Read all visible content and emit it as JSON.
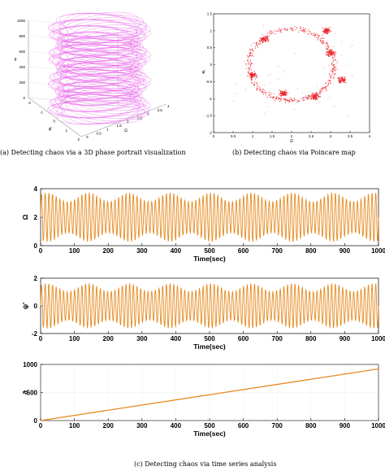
{
  "captions": {
    "a": "(a) Detecting chaos via a 3D phase portrait visualization",
    "b": "(b) Detecting chaos via Poincare map",
    "c": "(c) Detecting chaos via time series analysis"
  },
  "chart_data": [
    {
      "id": "a",
      "type": "scatter",
      "subtype": "3d-line",
      "title": "",
      "xlabel": "Ω",
      "ylabel": "ψ'",
      "zlabel": "ϑ",
      "x_ticks": [
        "0",
        "0.5",
        "1",
        "1.5",
        "2",
        "2.5",
        "3",
        "3.5",
        "4"
      ],
      "y_ticks": [
        "-2",
        "-1",
        "0",
        "1",
        "2"
      ],
      "z_ticks": [
        "0",
        "200",
        "400",
        "600",
        "800",
        "1000"
      ],
      "xlim": [
        0,
        4
      ],
      "ylim": [
        -2,
        2
      ],
      "zlim": [
        0,
        1000
      ],
      "grid": true,
      "color": "#e64fe6",
      "series": [
        {
          "values": "phase trajectory: Ω in [0.5, 3.5], ψ' in [-2, 2], ϑ increasing 0 to 1000"
        }
      ]
    },
    {
      "id": "b",
      "type": "scatter",
      "title": "",
      "xlabel": "Ω",
      "ylabel": "ψ'",
      "x_ticks": [
        "0",
        "0.5",
        "1",
        "1.5",
        "2",
        "2.5",
        "3",
        "3.5",
        "4"
      ],
      "y_ticks": [
        "-2",
        "-1.5",
        "-1",
        "-0.5",
        "0",
        "0.5",
        "1",
        "1.5"
      ],
      "xlim": [
        0,
        4
      ],
      "ylim": [
        -2,
        1.5
      ],
      "color": "#e8222a",
      "ring": {
        "center": [
          2.0,
          0.0
        ],
        "radius_x": 1.1,
        "radius_y": 1.05
      },
      "clusters": [
        {
          "x": 1.3,
          "y": 0.75
        },
        {
          "x": 2.9,
          "y": 1.0
        },
        {
          "x": 3.0,
          "y": 0.35
        },
        {
          "x": 1.0,
          "y": -0.3
        },
        {
          "x": 1.8,
          "y": -0.85
        },
        {
          "x": 2.6,
          "y": -0.95
        },
        {
          "x": 3.3,
          "y": -0.45
        }
      ]
    },
    {
      "id": "c1",
      "type": "line",
      "title": "",
      "xlabel": "Time(sec)",
      "ylabel": "Ω",
      "x_ticks": [
        "0",
        "100",
        "200",
        "300",
        "400",
        "500",
        "600",
        "700",
        "800",
        "900",
        "1000"
      ],
      "y_ticks": [
        "0",
        "2",
        "4"
      ],
      "xlim": [
        0,
        1000
      ],
      "ylim": [
        0,
        4
      ],
      "color": "#e58a1f",
      "series": [
        {
          "mean": 2.0,
          "amplitude": 1.7,
          "cycles": 92
        }
      ]
    },
    {
      "id": "c2",
      "type": "line",
      "title": "",
      "xlabel": "Time(sec)",
      "ylabel": "ψ'",
      "x_ticks": [
        "0",
        "100",
        "200",
        "300",
        "400",
        "500",
        "600",
        "700",
        "800",
        "900",
        "1000"
      ],
      "y_ticks": [
        "-2",
        "0",
        "2"
      ],
      "xlim": [
        0,
        1000
      ],
      "ylim": [
        -2,
        2
      ],
      "color": "#e58a1f",
      "series": [
        {
          "mean": 0.0,
          "amplitude": 1.6,
          "cycles": 92
        }
      ]
    },
    {
      "id": "c3",
      "type": "line",
      "title": "",
      "xlabel": "Time(sec)",
      "ylabel": "ϑ",
      "x_ticks": [
        "0",
        "100",
        "200",
        "300",
        "400",
        "500",
        "600",
        "700",
        "800",
        "900",
        "1000"
      ],
      "y_ticks": [
        "0",
        "500",
        "1000"
      ],
      "xlim": [
        0,
        1000
      ],
      "ylim": [
        0,
        1000
      ],
      "color": "#e58a1f",
      "series": [
        {
          "x": [
            0,
            1000
          ],
          "y": [
            0,
            920
          ]
        }
      ]
    }
  ]
}
